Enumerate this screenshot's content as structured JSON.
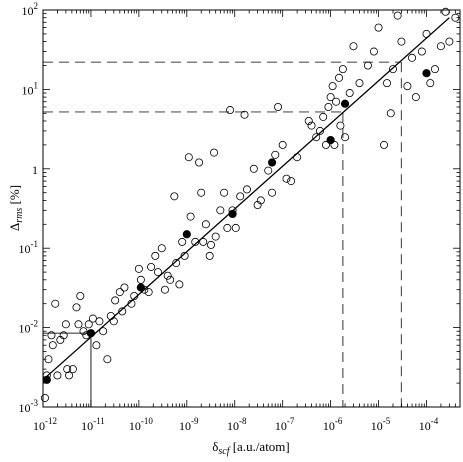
{
  "chart_data": {
    "type": "scatter",
    "x_scale": "log",
    "y_scale": "log",
    "xlim": [
      1e-12,
      0.0005
    ],
    "ylim": [
      0.001,
      100
    ],
    "grid": false,
    "legend": "none",
    "xlabel": {
      "main": "δ",
      "sub": "scf",
      "rest": " [a.u./atom]"
    },
    "ylabel": {
      "main": "Δ",
      "sub": "rms",
      "rest": " [%]"
    },
    "x_ticks": [
      {
        "value": 1e-12,
        "base": "10",
        "exp": "-12"
      },
      {
        "value": 1e-11,
        "base": "10",
        "exp": "-11"
      },
      {
        "value": 1e-10,
        "base": "10",
        "exp": "-10"
      },
      {
        "value": 1e-09,
        "base": "10",
        "exp": "-9"
      },
      {
        "value": 1e-08,
        "base": "10",
        "exp": "-8"
      },
      {
        "value": 1e-07,
        "base": "10",
        "exp": "-7"
      },
      {
        "value": 1e-06,
        "base": "10",
        "exp": "-6"
      },
      {
        "value": 1e-05,
        "base": "10",
        "exp": "-5"
      },
      {
        "value": 0.0001,
        "base": "10",
        "exp": "-4"
      }
    ],
    "y_ticks": [
      {
        "value": 0.001,
        "base": "10",
        "exp": "-3"
      },
      {
        "value": 0.01,
        "base": "10",
        "exp": "-2"
      },
      {
        "value": 0.1,
        "base": "10",
        "exp": "-1"
      },
      {
        "value": 1,
        "base": "1",
        "exp": ""
      },
      {
        "value": 10,
        "base": "10",
        "exp": "1"
      },
      {
        "value": 100,
        "base": "10",
        "exp": "2"
      }
    ],
    "fit_line": {
      "x": [
        1e-12,
        0.0003
      ],
      "y": [
        0.0022,
        80
      ],
      "color": "#000000"
    },
    "series": [
      {
        "marker": "open-circle",
        "color": "#000000",
        "points": [
          [
            1.1e-12,
            0.0013
          ],
          [
            1.2e-12,
            0.0025
          ],
          [
            1.3e-12,
            0.004
          ],
          [
            1.5e-12,
            0.008
          ],
          [
            1.6e-12,
            0.006
          ],
          [
            1.8e-12,
            0.02
          ],
          [
            2e-12,
            0.0025
          ],
          [
            2.3e-12,
            0.007
          ],
          [
            2.7e-12,
            0.008
          ],
          [
            3e-12,
            0.011
          ],
          [
            3.2e-12,
            0.003
          ],
          [
            3.5e-12,
            0.0025
          ],
          [
            4.2e-12,
            0.003
          ],
          [
            5e-12,
            0.018
          ],
          [
            5.5e-12,
            0.011
          ],
          [
            6e-12,
            0.025
          ],
          [
            7e-12,
            0.009
          ],
          [
            8e-12,
            0.008
          ],
          [
            9e-12,
            0.011
          ],
          [
            1.1e-11,
            0.013
          ],
          [
            1.3e-11,
            0.006
          ],
          [
            1.5e-11,
            0.012
          ],
          [
            1.8e-11,
            0.009
          ],
          [
            2.2e-11,
            0.004
          ],
          [
            2.6e-11,
            0.014
          ],
          [
            3e-11,
            0.012
          ],
          [
            3.2e-11,
            0.022
          ],
          [
            4e-11,
            0.028
          ],
          [
            4.5e-11,
            0.016
          ],
          [
            5e-11,
            0.032
          ],
          [
            7e-11,
            0.02
          ],
          [
            8e-11,
            0.025
          ],
          [
            1e-10,
            0.055
          ],
          [
            1.1e-10,
            0.04
          ],
          [
            1.3e-10,
            0.03
          ],
          [
            1.6e-10,
            0.028
          ],
          [
            1.8e-10,
            0.058
          ],
          [
            2.2e-10,
            0.08
          ],
          [
            2.5e-10,
            0.05
          ],
          [
            3e-10,
            0.1
          ],
          [
            3.5e-10,
            0.03
          ],
          [
            4e-10,
            0.045
          ],
          [
            4.5e-10,
            0.04
          ],
          [
            5.5e-10,
            0.45
          ],
          [
            6e-10,
            0.065
          ],
          [
            7e-10,
            0.035
          ],
          [
            8e-10,
            0.12
          ],
          [
            9e-10,
            0.08
          ],
          [
            1.1e-09,
            1.4
          ],
          [
            1.2e-09,
            0.25
          ],
          [
            1.5e-09,
            0.12
          ],
          [
            1.8e-09,
            1.2
          ],
          [
            2e-09,
            0.5
          ],
          [
            2.2e-09,
            0.12
          ],
          [
            2.5e-09,
            0.2
          ],
          [
            3e-09,
            0.08
          ],
          [
            3.2e-09,
            0.11
          ],
          [
            3.7e-09,
            1.6
          ],
          [
            4e-09,
            0.14
          ],
          [
            5e-09,
            0.3
          ],
          [
            6e-09,
            0.5
          ],
          [
            7e-09,
            0.18
          ],
          [
            8e-09,
            5.5
          ],
          [
            9e-09,
            0.3
          ],
          [
            1.05e-08,
            0.18
          ],
          [
            1.3e-08,
            0.45
          ],
          [
            1.6e-08,
            4.8
          ],
          [
            1.8e-08,
            0.55
          ],
          [
            2.5e-08,
            1.0
          ],
          [
            3e-08,
            0.35
          ],
          [
            3.5e-08,
            0.4
          ],
          [
            5e-08,
            0.95
          ],
          [
            6e-08,
            0.5
          ],
          [
            7e-08,
            1.5
          ],
          [
            8e-08,
            6
          ],
          [
            1e-07,
            2
          ],
          [
            1.2e-07,
            0.75
          ],
          [
            1.5e-07,
            0.7
          ],
          [
            2e-07,
            1.4
          ],
          [
            3.5e-07,
            4
          ],
          [
            4e-07,
            3.5
          ],
          [
            5e-07,
            2.5
          ],
          [
            6e-07,
            3
          ],
          [
            7e-07,
            4.5
          ],
          [
            8e-07,
            2
          ],
          [
            9e-07,
            6
          ],
          [
            1e-06,
            8
          ],
          [
            1.1e-06,
            11
          ],
          [
            1.2e-06,
            2
          ],
          [
            1.3e-06,
            7
          ],
          [
            1.5e-06,
            14
          ],
          [
            1.6e-06,
            3.5
          ],
          [
            1.8e-06,
            18
          ],
          [
            2e-06,
            2.5
          ],
          [
            2.5e-06,
            9
          ],
          [
            3e-06,
            35
          ],
          [
            4e-06,
            12
          ],
          [
            6e-06,
            20
          ],
          [
            8e-06,
            30
          ],
          [
            1e-05,
            60
          ],
          [
            1.3e-05,
            2
          ],
          [
            1.5e-05,
            12
          ],
          [
            1.8e-05,
            5
          ],
          [
            2e-05,
            18
          ],
          [
            2.5e-05,
            85
          ],
          [
            3e-05,
            40
          ],
          [
            4e-05,
            11
          ],
          [
            5e-05,
            25
          ],
          [
            6e-05,
            8
          ],
          [
            8e-05,
            30
          ],
          [
            0.0001,
            50
          ],
          [
            0.00012,
            12
          ],
          [
            0.00015,
            18
          ],
          [
            0.0002,
            35
          ],
          [
            0.00025,
            95
          ],
          [
            0.0003,
            40
          ],
          [
            0.0004,
            80
          ]
        ]
      },
      {
        "marker": "filled-circle",
        "color": "#000000",
        "points": [
          [
            1.2e-12,
            0.0022
          ],
          [
            1e-11,
            0.0085
          ],
          [
            1.1e-10,
            0.032
          ],
          [
            1e-09,
            0.15
          ],
          [
            9e-09,
            0.27
          ],
          [
            6e-08,
            1.2
          ],
          [
            1e-06,
            2.3
          ],
          [
            2e-06,
            6.6
          ],
          [
            0.0001,
            16
          ]
        ]
      }
    ],
    "reference_lines": [
      {
        "x": 1e-11,
        "y": 0.0085,
        "style": "solid"
      },
      {
        "x": 1.8e-06,
        "y": 5.2,
        "style": "dashed"
      },
      {
        "x": 3e-05,
        "y": 22,
        "style": "dashed"
      }
    ]
  }
}
